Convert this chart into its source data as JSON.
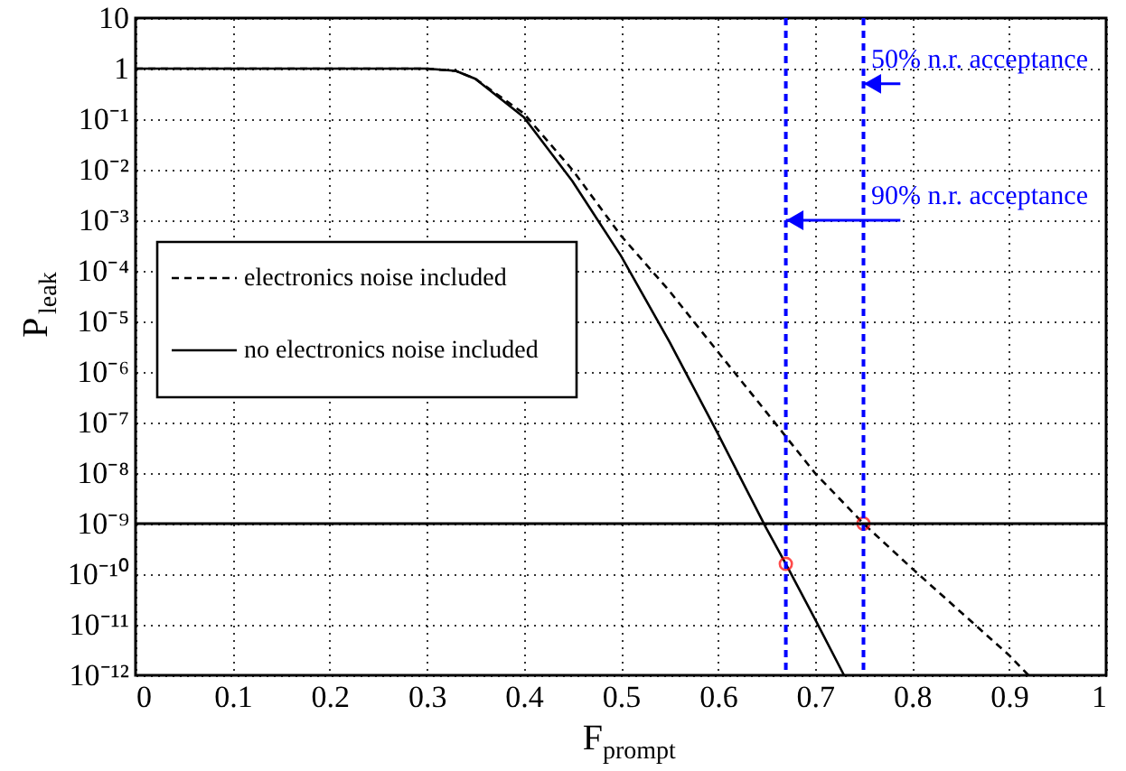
{
  "chart_data": {
    "type": "line",
    "xlabel": "F$_{prompt}$",
    "ylabel": "P$_{leak}$",
    "log": "y",
    "xlim": [
      0,
      1
    ],
    "ylim": [
      1e-12,
      10
    ],
    "xticks": [
      0,
      0.1,
      0.2,
      0.3,
      0.4,
      0.5,
      0.6,
      0.7,
      0.8,
      0.9,
      1
    ],
    "yticks": [
      {
        "value": 1e-12,
        "label": "10⁻¹²"
      },
      {
        "value": 1e-11,
        "label": "10⁻¹¹"
      },
      {
        "value": 1e-10,
        "label": "10⁻¹⁰"
      },
      {
        "value": 1e-09,
        "label": "10⁻⁹"
      },
      {
        "value": 1e-08,
        "label": "10⁻⁸"
      },
      {
        "value": 1e-07,
        "label": "10⁻⁷"
      },
      {
        "value": 1e-06,
        "label": "10⁻⁶"
      },
      {
        "value": 1e-05,
        "label": "10⁻⁵"
      },
      {
        "value": 0.0001,
        "label": "10⁻⁴"
      },
      {
        "value": 0.001,
        "label": "10⁻³"
      },
      {
        "value": 0.01,
        "label": "10⁻²"
      },
      {
        "value": 0.1,
        "label": "10⁻¹"
      },
      1,
      10
    ],
    "grid": true,
    "legend": "left",
    "series": [
      {
        "name": "electronics noise included",
        "color": "#000000",
        "line_style": "dashed",
        "x": [
          0,
          0.1,
          0.2,
          0.3,
          0.33,
          0.35,
          0.4,
          0.45,
          0.5,
          0.55,
          0.6,
          0.65,
          0.7,
          0.75,
          0.8,
          0.85,
          0.9,
          0.92
        ],
        "values": [
          1,
          1,
          1,
          1,
          0.9,
          0.63,
          0.13,
          0.01,
          0.0005,
          4e-05,
          2.5e-06,
          1.6e-07,
          1e-08,
          1e-09,
          1.3e-10,
          1.8e-11,
          2.5e-12,
          1e-12
        ]
      },
      {
        "name": "no electronics noise included",
        "color": "#000000",
        "line_style": "solid",
        "x": [
          0,
          0.1,
          0.2,
          0.3,
          0.33,
          0.35,
          0.4,
          0.45,
          0.5,
          0.55,
          0.6,
          0.65,
          0.67,
          0.7,
          0.73
        ],
        "values": [
          1,
          1,
          1,
          1,
          0.9,
          0.63,
          0.11,
          0.006,
          0.0002,
          4e-06,
          6e-08,
          8e-10,
          1.6e-10,
          1.3e-11,
          1e-12
        ]
      },
      {
        "type": "scatter",
        "marker": "circle",
        "color": "#ff0000",
        "x": [
          0.67,
          0.75
        ],
        "values": [
          1.6e-10,
          1e-09
        ]
      }
    ],
    "ref_lines": [
      {
        "axis": "x",
        "value": 0.67,
        "color": "#0000ff",
        "line_style": "dashed"
      },
      {
        "axis": "x",
        "value": 0.75,
        "color": "#0000ff",
        "line_style": "dashed"
      },
      {
        "axis": "y",
        "value": 1e-09,
        "color": "#000000",
        "line_style": "solid"
      }
    ],
    "annotations": [
      {
        "text": "50% n.r. acceptance",
        "x": 0.75,
        "y": 0.5
      },
      {
        "text": "90% n.r. acceptance",
        "x": 0.67,
        "y": 0.001
      }
    ]
  }
}
